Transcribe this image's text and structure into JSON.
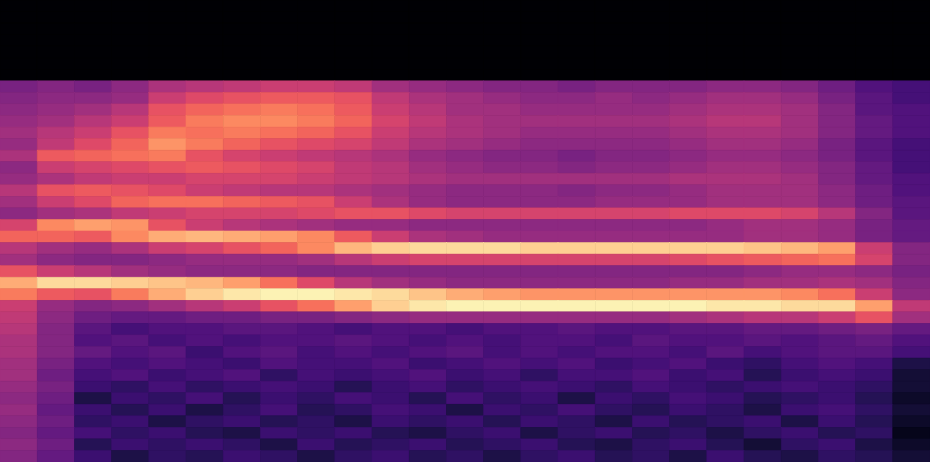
{
  "chart_data": {
    "type": "heatmap",
    "tick_labels": false,
    "color": "magma",
    "color_range": [
      -80,
      0
    ],
    "cells": [
      [
        -80,
        -80,
        -80,
        -80,
        -80,
        -80,
        -80,
        -80,
        -80,
        -80,
        -80,
        -80,
        -80,
        -80,
        -80,
        -80,
        -80,
        -80,
        -80,
        -80,
        -80,
        -80,
        -80,
        -80,
        -80
      ],
      [
        -80,
        -80,
        -80,
        -80,
        -80,
        -80,
        -80,
        -80,
        -80,
        -80,
        -80,
        -80,
        -80,
        -80,
        -80,
        -80,
        -80,
        -80,
        -80,
        -80,
        -80,
        -80,
        -80,
        -80,
        -80
      ],
      [
        -80,
        -80,
        -80,
        -80,
        -80,
        -80,
        -80,
        -80,
        -80,
        -80,
        -80,
        -80,
        -80,
        -80,
        -80,
        -80,
        -80,
        -80,
        -80,
        -80,
        -80,
        -80,
        -80,
        -80,
        -80
      ],
      [
        -80,
        -80,
        -80,
        -80,
        -80,
        -80,
        -80,
        -80,
        -80,
        -80,
        -80,
        -80,
        -80,
        -80,
        -80,
        -80,
        -80,
        -80,
        -80,
        -80,
        -80,
        -80,
        -80,
        -80,
        -80
      ],
      [
        -80,
        -80,
        -80,
        -80,
        -80,
        -80,
        -80,
        -80,
        -80,
        -80,
        -80,
        -80,
        -80,
        -80,
        -80,
        -80,
        -80,
        -80,
        -80,
        -80,
        -80,
        -80,
        -80,
        -80,
        -80
      ],
      [
        -80,
        -80,
        -80,
        -80,
        -80,
        -80,
        -80,
        -80,
        -80,
        -80,
        -80,
        -80,
        -80,
        -80,
        -80,
        -80,
        -80,
        -80,
        -80,
        -80,
        -80,
        -80,
        -80,
        -80,
        -80
      ],
      [
        -80,
        -80,
        -80,
        -80,
        -80,
        -80,
        -80,
        -80,
        -80,
        -80,
        -80,
        -80,
        -80,
        -80,
        -80,
        -80,
        -80,
        -80,
        -80,
        -80,
        -80,
        -80,
        -80,
        -80,
        -80
      ],
      [
        -52,
        -50,
        -52,
        -48,
        -42,
        -40,
        -38,
        -36,
        -36,
        -38,
        -44,
        -46,
        -48,
        -50,
        -50,
        -52,
        -50,
        -50,
        -50,
        -48,
        -48,
        -50,
        -54,
        -60,
        -62
      ],
      [
        -50,
        -48,
        -48,
        -46,
        -36,
        -32,
        -30,
        -28,
        -28,
        -30,
        -38,
        -42,
        -44,
        -46,
        -48,
        -48,
        -46,
        -48,
        -46,
        -44,
        -44,
        -46,
        -52,
        -58,
        -62
      ],
      [
        -48,
        -46,
        -44,
        -40,
        -30,
        -26,
        -24,
        -22,
        -24,
        -28,
        -36,
        -40,
        -44,
        -44,
        -46,
        -46,
        -46,
        -46,
        -44,
        -42,
        -42,
        -44,
        -50,
        -58,
        -60
      ],
      [
        -46,
        -44,
        -40,
        -36,
        -28,
        -22,
        -20,
        -20,
        -22,
        -26,
        -34,
        -38,
        -42,
        -44,
        -44,
        -44,
        -44,
        -44,
        -42,
        -40,
        -40,
        -44,
        -50,
        -56,
        -60
      ],
      [
        -44,
        -40,
        -36,
        -30,
        -22,
        -24,
        -22,
        -24,
        -26,
        -30,
        -36,
        -40,
        -42,
        -44,
        -46,
        -46,
        -46,
        -46,
        -44,
        -42,
        -42,
        -44,
        -50,
        -56,
        -60
      ],
      [
        -46,
        -38,
        -32,
        -26,
        -18,
        -22,
        -26,
        -30,
        -32,
        -34,
        -38,
        -42,
        -44,
        -46,
        -48,
        -48,
        -48,
        -48,
        -46,
        -44,
        -44,
        -46,
        -52,
        -58,
        -62
      ],
      [
        -42,
        -28,
        -26,
        -24,
        -22,
        -30,
        -34,
        -36,
        -38,
        -40,
        -42,
        -46,
        -48,
        -50,
        -50,
        -52,
        -50,
        -50,
        -48,
        -46,
        -46,
        -48,
        -52,
        -58,
        -62
      ],
      [
        -48,
        -36,
        -34,
        -32,
        -30,
        -28,
        -30,
        -32,
        -34,
        -38,
        -40,
        -44,
        -46,
        -48,
        -48,
        -50,
        -48,
        -48,
        -46,
        -44,
        -44,
        -46,
        -50,
        -56,
        -62
      ],
      [
        -46,
        -42,
        -38,
        -36,
        -36,
        -34,
        -34,
        -34,
        -36,
        -38,
        -40,
        -42,
        -44,
        -44,
        -44,
        -44,
        -44,
        -44,
        -42,
        -42,
        -42,
        -44,
        -50,
        -56,
        -60
      ],
      [
        -40,
        -30,
        -28,
        -30,
        -32,
        -36,
        -38,
        -40,
        -40,
        -42,
        -44,
        -46,
        -48,
        -48,
        -48,
        -50,
        -48,
        -48,
        -46,
        -44,
        -44,
        -44,
        -48,
        -54,
        -60
      ],
      [
        -44,
        -36,
        -32,
        -26,
        -24,
        -24,
        -26,
        -28,
        -30,
        -36,
        -42,
        -46,
        -48,
        -48,
        -48,
        -48,
        -46,
        -46,
        -46,
        -44,
        -44,
        -44,
        -48,
        -54,
        -58
      ],
      [
        -48,
        -44,
        -42,
        -38,
        -36,
        -34,
        -34,
        -34,
        -32,
        -30,
        -30,
        -32,
        -34,
        -34,
        -34,
        -34,
        -34,
        -34,
        -32,
        -32,
        -32,
        -34,
        -40,
        -50,
        -58
      ],
      [
        -34,
        -20,
        -16,
        -18,
        -30,
        -36,
        -40,
        -42,
        -44,
        -46,
        -46,
        -48,
        -48,
        -48,
        -48,
        -48,
        -48,
        -48,
        -48,
        -46,
        -44,
        -44,
        -46,
        -52,
        -56
      ],
      [
        -26,
        -26,
        -28,
        -20,
        -14,
        -12,
        -14,
        -16,
        -20,
        -28,
        -36,
        -42,
        -44,
        -46,
        -46,
        -46,
        -46,
        -46,
        -46,
        -46,
        -44,
        -44,
        -46,
        -52,
        -56
      ],
      [
        -40,
        -44,
        -46,
        -42,
        -36,
        -34,
        -30,
        -26,
        -20,
        -12,
        -8,
        -6,
        -6,
        -6,
        -8,
        -8,
        -8,
        -8,
        -8,
        -8,
        -10,
        -12,
        -16,
        -36,
        -50
      ],
      [
        -44,
        -48,
        -50,
        -50,
        -48,
        -46,
        -46,
        -46,
        -44,
        -40,
        -36,
        -34,
        -34,
        -34,
        -34,
        -34,
        -34,
        -34,
        -32,
        -30,
        -28,
        -26,
        -24,
        -34,
        -50
      ],
      [
        -30,
        -36,
        -40,
        -44,
        -46,
        -48,
        -48,
        -48,
        -50,
        -50,
        -50,
        -50,
        -50,
        -50,
        -50,
        -50,
        -50,
        -50,
        -50,
        -50,
        -48,
        -46,
        -46,
        -48,
        -52
      ],
      [
        -14,
        -6,
        -6,
        -8,
        -10,
        -12,
        -16,
        -24,
        -32,
        -40,
        -44,
        -46,
        -48,
        -48,
        -48,
        -48,
        -48,
        -48,
        -46,
        -46,
        -44,
        -44,
        -42,
        -44,
        -50
      ],
      [
        -22,
        -28,
        -30,
        -22,
        -14,
        -8,
        -4,
        -2,
        -2,
        -4,
        -6,
        -10,
        -14,
        -16,
        -18,
        -18,
        -18,
        -18,
        -18,
        -18,
        -18,
        -20,
        -24,
        -36,
        -48
      ],
      [
        -36,
        -46,
        -50,
        -48,
        -44,
        -40,
        -36,
        -30,
        -24,
        -16,
        -8,
        -4,
        -2,
        -2,
        -2,
        -2,
        -2,
        -2,
        -2,
        -4,
        -4,
        -6,
        -6,
        -16,
        -38
      ],
      [
        -38,
        -48,
        -54,
        -56,
        -56,
        -54,
        -54,
        -52,
        -52,
        -50,
        -48,
        -46,
        -46,
        -46,
        -46,
        -46,
        -46,
        -46,
        -44,
        -42,
        -40,
        -40,
        -36,
        -30,
        -44
      ],
      [
        -40,
        -50,
        -58,
        -62,
        -60,
        -60,
        -58,
        -58,
        -60,
        -62,
        -60,
        -60,
        -62,
        -60,
        -60,
        -58,
        -60,
        -60,
        -58,
        -58,
        -56,
        -56,
        -54,
        -52,
        -56
      ],
      [
        -42,
        -50,
        -60,
        -58,
        -62,
        -60,
        -62,
        -60,
        -60,
        -58,
        -60,
        -62,
        -60,
        -62,
        -60,
        -60,
        -62,
        -58,
        -60,
        -60,
        -58,
        -60,
        -58,
        -56,
        -60
      ],
      [
        -42,
        -50,
        -56,
        -60,
        -58,
        -64,
        -60,
        -58,
        -62,
        -60,
        -62,
        -60,
        -58,
        -62,
        -60,
        -62,
        -60,
        -60,
        -62,
        -58,
        -62,
        -60,
        -58,
        -58,
        -62
      ],
      [
        -44,
        -52,
        -60,
        -62,
        -60,
        -62,
        -64,
        -60,
        -62,
        -62,
        -60,
        -64,
        -62,
        -60,
        -62,
        -60,
        -64,
        -62,
        -60,
        -64,
        -66,
        -62,
        -60,
        -62,
        -70
      ],
      [
        -44,
        -54,
        -62,
        -60,
        -64,
        -62,
        -60,
        -66,
        -62,
        -64,
        -62,
        -60,
        -64,
        -62,
        -66,
        -62,
        -62,
        -60,
        -64,
        -62,
        -68,
        -64,
        -62,
        -64,
        -72
      ],
      [
        -46,
        -52,
        -64,
        -66,
        -62,
        -66,
        -64,
        -62,
        -64,
        -68,
        -64,
        -62,
        -66,
        -64,
        -62,
        -64,
        -66,
        -62,
        -64,
        -66,
        -64,
        -62,
        -64,
        -66,
        -72
      ],
      [
        -48,
        -54,
        -70,
        -64,
        -66,
        -62,
        -68,
        -64,
        -66,
        -62,
        -64,
        -68,
        -62,
        -66,
        -64,
        -70,
        -64,
        -66,
        -62,
        -64,
        -68,
        -66,
        -64,
        -68,
        -74
      ],
      [
        -46,
        -56,
        -64,
        -68,
        -64,
        -70,
        -66,
        -62,
        -68,
        -66,
        -62,
        -64,
        -70,
        -64,
        -66,
        -62,
        -66,
        -68,
        -64,
        -66,
        -70,
        -64,
        -62,
        -66,
        -72
      ],
      [
        -48,
        -54,
        -66,
        -64,
        -70,
        -66,
        -64,
        -68,
        -66,
        -70,
        -64,
        -66,
        -64,
        -68,
        -64,
        -66,
        -70,
        -64,
        -68,
        -66,
        -64,
        -70,
        -64,
        -68,
        -74
      ],
      [
        -50,
        -56,
        -62,
        -66,
        -64,
        -68,
        -70,
        -64,
        -66,
        -64,
        -68,
        -70,
        -66,
        -64,
        -70,
        -66,
        -64,
        -68,
        -66,
        -70,
        -66,
        -64,
        -68,
        -66,
        -76
      ],
      [
        -48,
        -54,
        -68,
        -64,
        -66,
        -64,
        -66,
        -70,
        -64,
        -68,
        -66,
        -64,
        -68,
        -66,
        -64,
        -68,
        -70,
        -66,
        -64,
        -68,
        -72,
        -66,
        -64,
        -70,
        -74
      ],
      [
        -50,
        -56,
        -64,
        -70,
        -66,
        -68,
        -64,
        -66,
        -70,
        -66,
        -64,
        -68,
        -66,
        -70,
        -66,
        -64,
        -68,
        -66,
        -70,
        -64,
        -68,
        -70,
        -66,
        -68,
        -72
      ]
    ]
  }
}
